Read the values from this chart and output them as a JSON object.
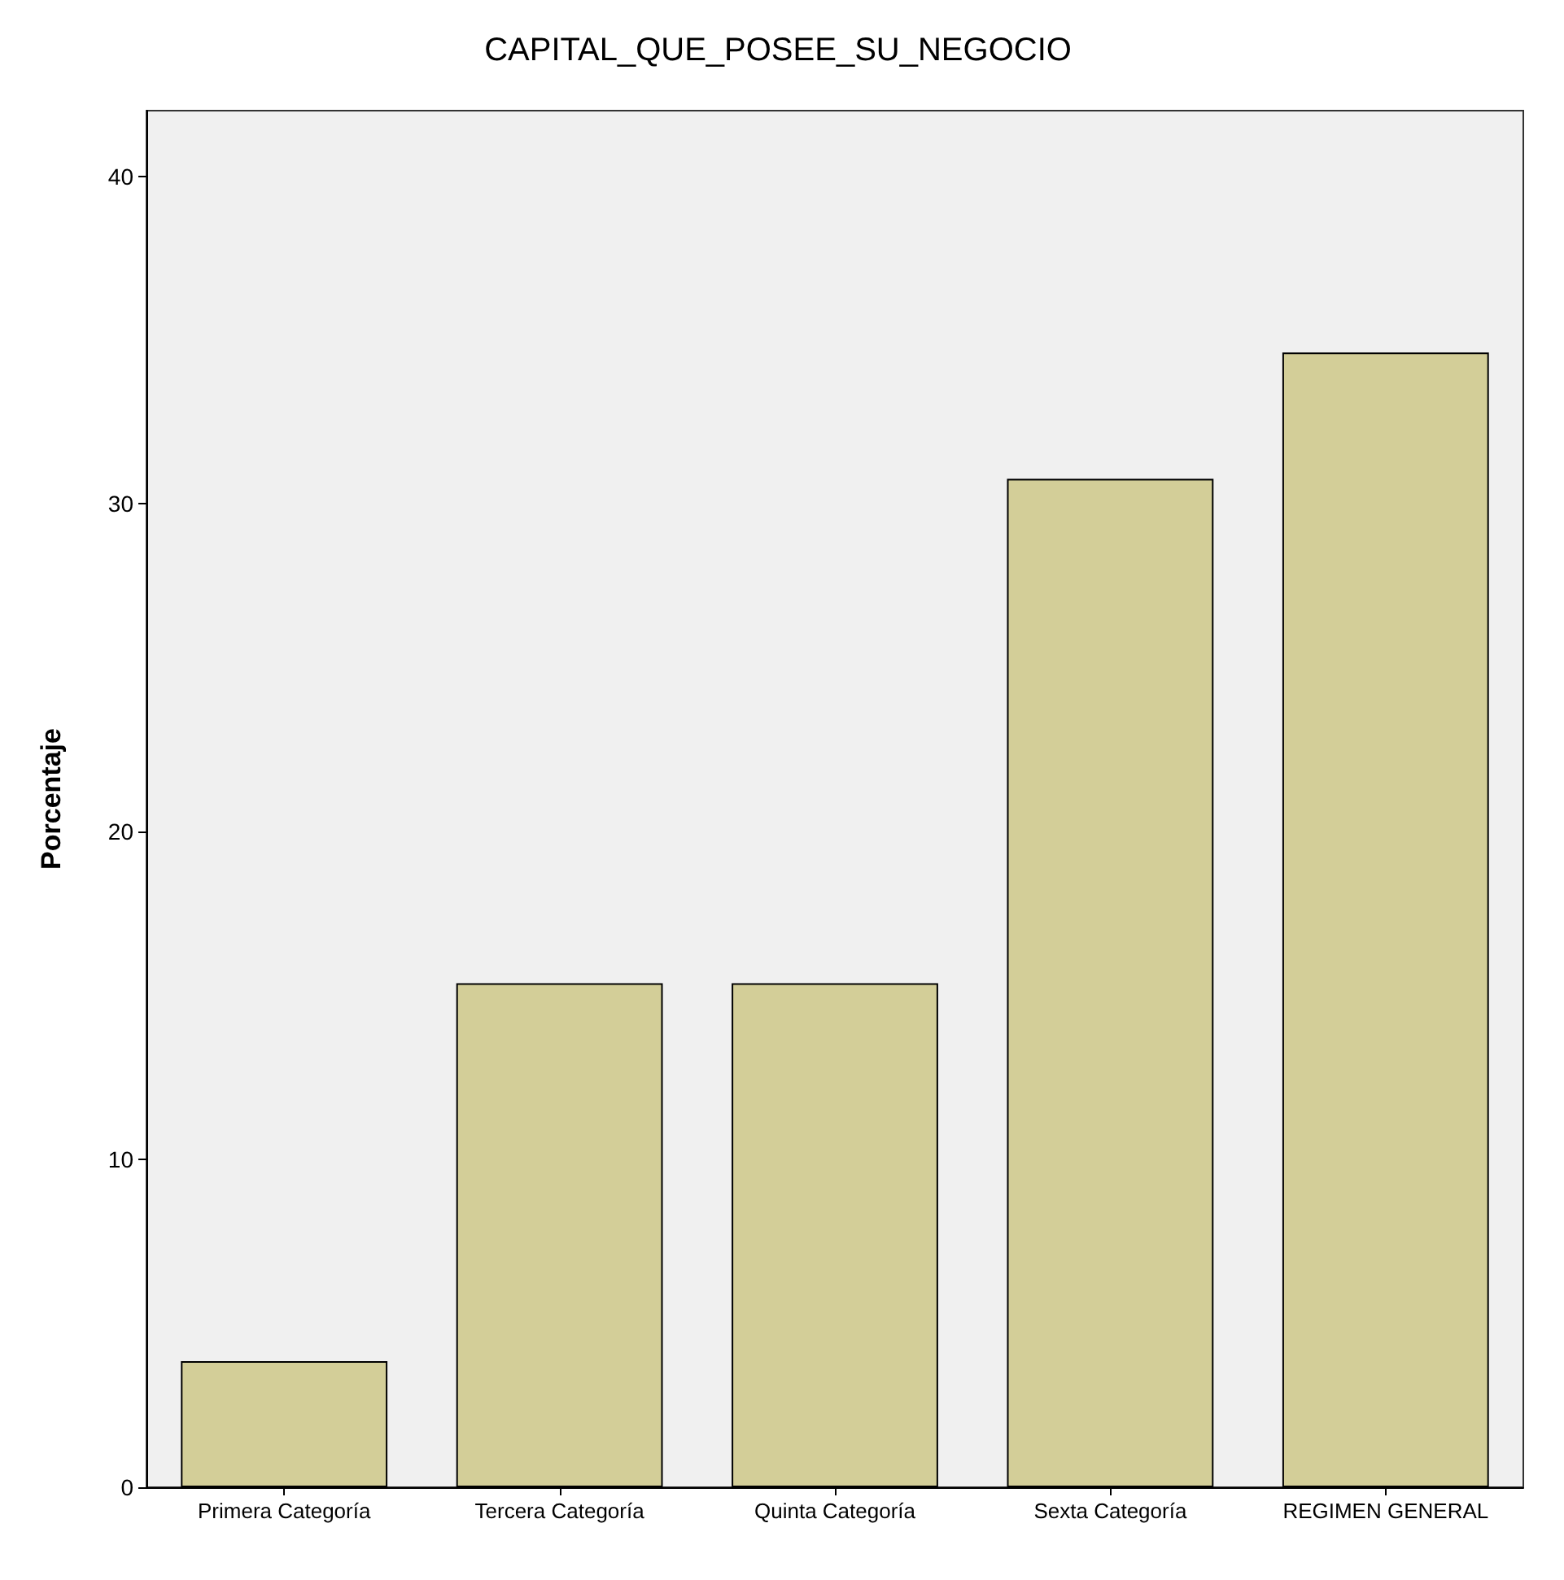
{
  "chart_data": {
    "type": "bar",
    "title": "CAPITAL_QUE_POSEE_SU_NEGOCIO",
    "ylabel": "Porcentaje",
    "categories": [
      "Primera Categoría",
      "Tercera Categoría",
      "Quinta Categoría",
      "Sexta Categoría",
      "REGIMEN GENERAL"
    ],
    "values": [
      3.85,
      15.38,
      15.38,
      30.77,
      34.62
    ],
    "color": "#d3ce98",
    "ylim": [
      0,
      42
    ],
    "yticks": [
      0,
      10,
      20,
      30,
      40
    ],
    "grid": false
  }
}
